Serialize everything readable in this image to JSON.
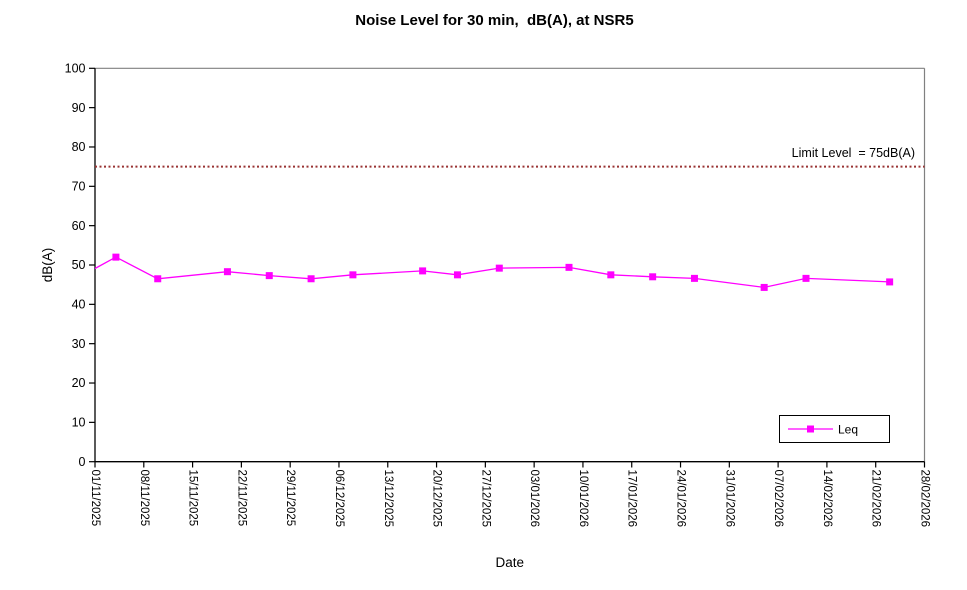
{
  "chart_data": {
    "type": "line",
    "title": "Noise Level for 30 min,  dB(A), at NSR5",
    "xlabel": "Date",
    "ylabel": "dB(A)",
    "ylim": [
      0,
      100
    ],
    "y_tick_step": 10,
    "y_tick_labels": [
      "0",
      "10",
      "20",
      "30",
      "40",
      "50",
      "60",
      "70",
      "80",
      "90",
      "100"
    ],
    "x_axis": {
      "start_date": "01/11/2025",
      "end_date": "28/02/2026",
      "span_days": 119,
      "tick_interval_days": 7
    },
    "x_tick_labels": [
      "01/11/2025",
      "08/11/2025",
      "15/11/2025",
      "22/11/2025",
      "29/11/2025",
      "06/12/2025",
      "13/12/2025",
      "20/12/2025",
      "27/12/2025",
      "03/01/2026",
      "10/01/2026",
      "17/01/2026",
      "24/01/2026",
      "31/01/2026",
      "07/02/2026",
      "14/02/2026",
      "21/02/2026",
      "28/02/2026"
    ],
    "grid": "off",
    "series": [
      {
        "name": "Leq",
        "color": "#ff00ff",
        "marker": "square",
        "points": [
          {
            "day": 0,
            "approx_date": "01/11/2025",
            "value": 49.1,
            "marker": false
          },
          {
            "day": 3,
            "approx_date": "04/11/2025",
            "value": 52.0,
            "marker": true
          },
          {
            "day": 9,
            "approx_date": "10/11/2025",
            "value": 46.5,
            "marker": true
          },
          {
            "day": 19,
            "approx_date": "20/11/2025",
            "value": 48.3,
            "marker": true
          },
          {
            "day": 25,
            "approx_date": "26/11/2025",
            "value": 47.3,
            "marker": true
          },
          {
            "day": 31,
            "approx_date": "02/12/2025",
            "value": 46.5,
            "marker": true
          },
          {
            "day": 37,
            "approx_date": "08/12/2025",
            "value": 47.5,
            "marker": true
          },
          {
            "day": 47,
            "approx_date": "18/12/2025",
            "value": 48.5,
            "marker": true
          },
          {
            "day": 52,
            "approx_date": "23/12/2025",
            "value": 47.5,
            "marker": true
          },
          {
            "day": 58,
            "approx_date": "29/12/2025",
            "value": 49.2,
            "marker": true
          },
          {
            "day": 68,
            "approx_date": "08/01/2026",
            "value": 49.4,
            "marker": true
          },
          {
            "day": 74,
            "approx_date": "14/01/2026",
            "value": 47.5,
            "marker": true
          },
          {
            "day": 80,
            "approx_date": "20/01/2026",
            "value": 47.0,
            "marker": true
          },
          {
            "day": 86,
            "approx_date": "26/01/2026",
            "value": 46.6,
            "marker": true
          },
          {
            "day": 96,
            "approx_date": "05/02/2026",
            "value": 44.3,
            "marker": true
          },
          {
            "day": 102,
            "approx_date": "11/02/2026",
            "value": 46.6,
            "marker": true
          },
          {
            "day": 114,
            "approx_date": "23/02/2026",
            "value": 45.7,
            "marker": true
          }
        ]
      }
    ],
    "limit_line": {
      "value": 75,
      "label": "Limit Level  = 75dB(A)",
      "style": "dotted",
      "line_color": "#993333",
      "label_color": "#ee3333"
    },
    "legend": {
      "position": "bottom-right",
      "entries": [
        "Leq"
      ]
    },
    "colors": {
      "axis": "#000000",
      "plot_border": "#808080",
      "background": "#ffffff"
    }
  }
}
